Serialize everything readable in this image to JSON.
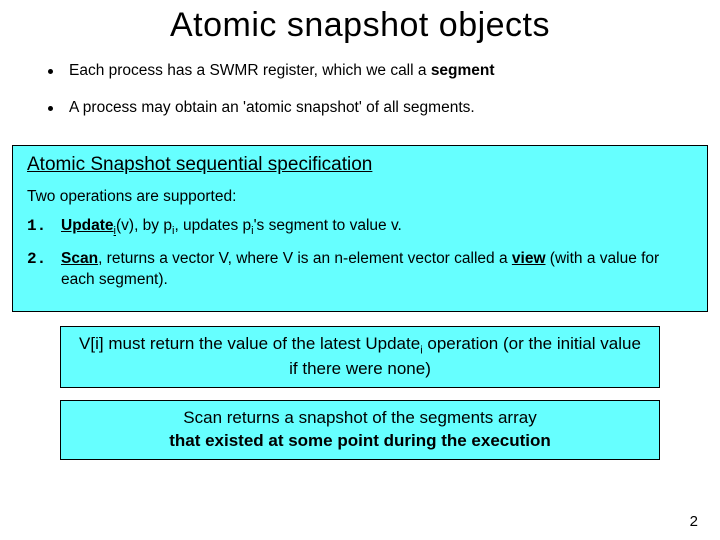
{
  "title": "Atomic snapshot objects",
  "bullets": {
    "b1_pre": "Each process has a SWMR register, which we call a ",
    "b1_bold": "segment",
    "b2": "A process may obtain an 'atomic snapshot' of all segments."
  },
  "spec": {
    "heading": "Atomic Snapshot sequential specification",
    "intro": "Two operations are supported:",
    "item1": {
      "num": "1.",
      "label": "Update",
      "mid1": "(v), by p",
      "mid2": ", updates p",
      "mid3": "'s segment to value v."
    },
    "item2": {
      "num": "2.",
      "label": "Scan",
      "mid": ", returns a vector V, where V is an n-element vector called a ",
      "view": "view",
      "tail": " (with a value for each segment)."
    }
  },
  "box1": {
    "pre": "V[i] must return the value of the latest Update",
    "post": " operation (or the initial value if there were none)"
  },
  "box2": {
    "line1": "Scan returns a snapshot of the segments array",
    "line2": "that existed at some point during the execution"
  },
  "sub_i": "i",
  "pagenum": "2",
  "colors": {
    "box_bg": "#66ffff",
    "border": "#000000",
    "text": "#000000",
    "page_bg": "#ffffff"
  }
}
